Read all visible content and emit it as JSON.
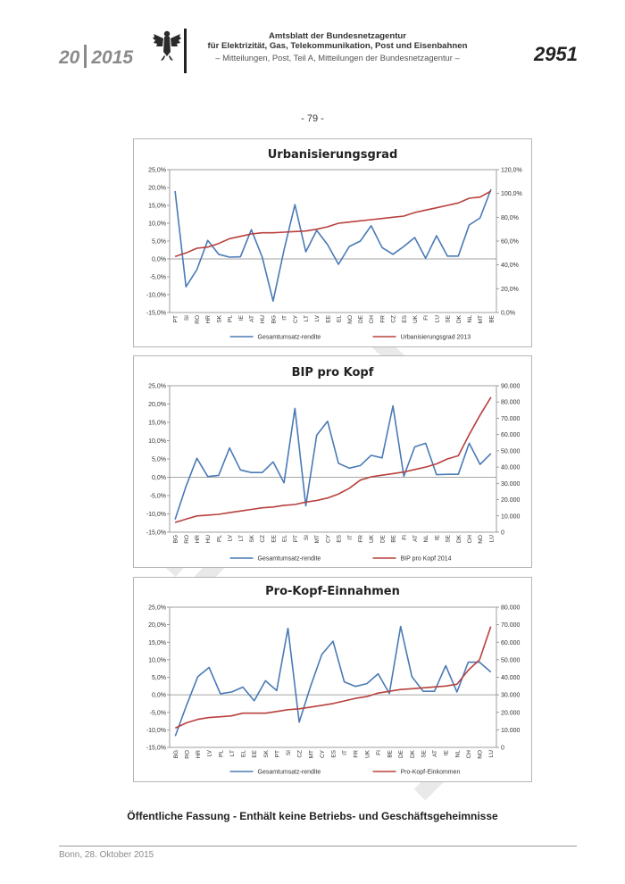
{
  "header": {
    "issue_number": "20",
    "year": "2015",
    "title_line1": "Amtsblatt der Bundesnetzagentur",
    "title_line2": "für Elektrizität, Gas, Telekommunikation, Post und Eisenbahnen",
    "subtitle": "– Mitteilungen, Post, Teil A, Mitteilungen der Bundesnetzagentur –",
    "page_number": "2951"
  },
  "page_label": "- 79 -",
  "footer": {
    "note": "Öffentliche Fassung - Enthält keine Betriebs- und Geschäftsgeheimnisse",
    "date": "Bonn, 28. Oktober 2015"
  },
  "colors": {
    "blue": "#4a7ab5",
    "red": "#b8403d"
  },
  "chart_data": [
    {
      "type": "line",
      "title": "Urbanisierungsgrad",
      "categories": [
        "PT",
        "SI",
        "RO",
        "HR",
        "SK",
        "PL",
        "IE",
        "AT",
        "HU",
        "BG",
        "IT",
        "CY",
        "LT",
        "LV",
        "EE",
        "EL",
        "NO",
        "DE",
        "CH",
        "FR",
        "CZ",
        "ES",
        "UK",
        "FI",
        "LU",
        "SE",
        "DK",
        "NL",
        "MT",
        "BE"
      ],
      "ylim": [
        -15,
        25
      ],
      "yticks": [
        "25,0%",
        "20,0%",
        "15,0%",
        "10,0%",
        "5,0%",
        "0,0%",
        "-5,0%",
        "-10,0%",
        "-15,0%"
      ],
      "y2lim": [
        0,
        120
      ],
      "y2ticks": [
        "120,0%",
        "100,0%",
        "80,0%",
        "60,0%",
        "40,0%",
        "20,0%",
        "0,0%"
      ],
      "series": [
        {
          "name": "Gesamtumsatz-rendite",
          "axis": "left",
          "values": [
            19,
            -7.8,
            -3,
            5.2,
            1.3,
            0.5,
            0.6,
            8.2,
            0.5,
            -11.8,
            2.5,
            15.2,
            2,
            8,
            4,
            -1.5,
            3.5,
            5,
            9.3,
            3.2,
            1.3,
            3.5,
            6,
            0.2,
            6.5,
            0.8,
            0.8,
            9.5,
            11.5,
            19.5
          ]
        },
        {
          "name": "Urbanisierungsgrad 2013",
          "axis": "right",
          "values": [
            47,
            50,
            54,
            55,
            58,
            62,
            64,
            66,
            67,
            67,
            67.5,
            68,
            68.5,
            70,
            72,
            75,
            76,
            77,
            78,
            79,
            80,
            81,
            84,
            86,
            88,
            90,
            92,
            96,
            97,
            102
          ]
        }
      ]
    },
    {
      "type": "line",
      "title": "BIP pro Kopf",
      "categories": [
        "BG",
        "RO",
        "HR",
        "HU",
        "PL",
        "LV",
        "LT",
        "SK",
        "CZ",
        "EE",
        "EL",
        "PT",
        "SI",
        "MT",
        "CY",
        "ES",
        "IT",
        "FR",
        "UK",
        "DE",
        "BE",
        "FI",
        "AT",
        "NL",
        "IE",
        "SE",
        "DK",
        "CH",
        "NO",
        "LU"
      ],
      "ylim": [
        -15,
        25
      ],
      "yticks": [
        "25,0%",
        "20,0%",
        "15,0%",
        "10,0%",
        "5,0%",
        "0,0%",
        "-5,0%",
        "-10,0%",
        "-15,0%"
      ],
      "y2lim": [
        0,
        90000
      ],
      "y2ticks": [
        "90.000",
        "80.000",
        "70.000",
        "60.000",
        "50.000",
        "40.000",
        "30.000",
        "20.000",
        "10.000",
        "0"
      ],
      "series": [
        {
          "name": "Gesamtumsatz-rendite",
          "axis": "left",
          "values": [
            -11.5,
            -2.5,
            5.2,
            0.2,
            0.5,
            8,
            2,
            1.3,
            1.3,
            4.2,
            -1.5,
            18.8,
            -7.8,
            11.5,
            15.3,
            3.8,
            2.5,
            3.2,
            6,
            5.3,
            19.5,
            0.3,
            8.3,
            9.3,
            0.7,
            0.8,
            0.8,
            9.3,
            3.5,
            6.5
          ]
        },
        {
          "name": "BIP pro Kopf 2014",
          "axis": "right",
          "values": [
            6000,
            8000,
            10000,
            10500,
            11000,
            12000,
            13000,
            14000,
            15000,
            15500,
            16500,
            17000,
            18500,
            19500,
            21000,
            23500,
            27000,
            32000,
            34000,
            35000,
            36000,
            37000,
            38500,
            40000,
            42000,
            45000,
            47000,
            60000,
            72000,
            83000
          ]
        }
      ]
    },
    {
      "type": "line",
      "title": "Pro-Kopf-Einnahmen",
      "categories": [
        "BG",
        "RO",
        "HR",
        "LV",
        "PL",
        "LT",
        "EL",
        "EE",
        "SK",
        "PT",
        "SI",
        "CZ",
        "MT",
        "CY",
        "ES",
        "IT",
        "FR",
        "UK",
        "FI",
        "BE",
        "DE",
        "DK",
        "SE",
        "AT",
        "IE",
        "NL",
        "CH",
        "NO",
        "LU"
      ],
      "ylim": [
        -15,
        25
      ],
      "yticks": [
        "25,0%",
        "20,0%",
        "15,0%",
        "10,0%",
        "5,0%",
        "0,0%",
        "-5,0%",
        "-10,0%",
        "-15,0%"
      ],
      "y2lim": [
        0,
        80000
      ],
      "y2ticks": [
        "80.000",
        "70.000",
        "60.000",
        "50.000",
        "40.000",
        "30.000",
        "20.000",
        "10.000",
        "0"
      ],
      "series": [
        {
          "name": "Gesamtumsatz-rendite",
          "axis": "left",
          "values": [
            -11.8,
            -3,
            5.2,
            7.8,
            0.3,
            0.8,
            2.2,
            -1.7,
            4,
            1.2,
            19,
            -7.8,
            2.4,
            11.5,
            15.3,
            3.7,
            2.4,
            3.2,
            6,
            0.4,
            19.5,
            5.2,
            1,
            1,
            8.3,
            0.8,
            9.3,
            9.3,
            6.5
          ]
        },
        {
          "name": "Pro-Kopf-Einkommen",
          "axis": "right",
          "values": [
            11000,
            14000,
            16000,
            17000,
            17500,
            18000,
            19500,
            19500,
            19500,
            20500,
            21500,
            22000,
            23000,
            24000,
            25000,
            26500,
            28000,
            29000,
            31000,
            32000,
            33000,
            33500,
            34000,
            34500,
            35000,
            36000,
            44000,
            50000,
            69000
          ]
        }
      ]
    }
  ]
}
